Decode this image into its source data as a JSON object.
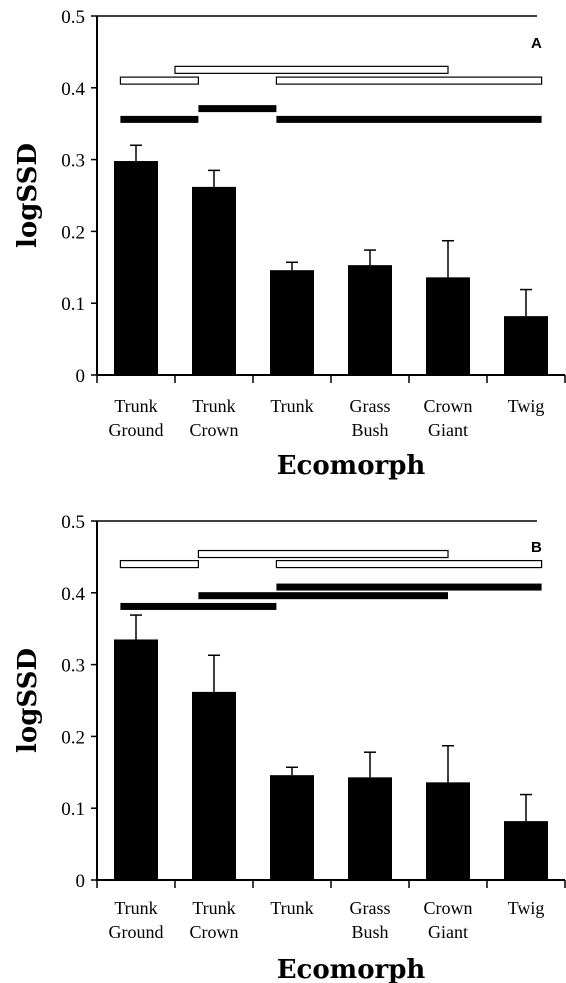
{
  "chart_data": [
    {
      "type": "bar",
      "panel_label": "A",
      "xlabel": "Ecomorph",
      "ylabel": "logSSD",
      "ylim": [
        0,
        0.5
      ],
      "yticks": [
        "0",
        "0.1",
        "0.2",
        "0.3",
        "0.4",
        "0.5"
      ],
      "categories": [
        [
          "Trunk",
          "Ground"
        ],
        [
          "Trunk",
          "Crown"
        ],
        [
          "Trunk"
        ],
        [
          "Grass",
          "Bush"
        ],
        [
          "Crown",
          "Giant"
        ],
        [
          "Twig"
        ]
      ],
      "values": [
        0.298,
        0.262,
        0.146,
        0.153,
        0.136,
        0.082
      ],
      "errors": [
        0.022,
        0.023,
        0.011,
        0.021,
        0.051,
        0.037
      ],
      "grouping_bars": [
        {
          "style": "open",
          "from": 1,
          "to": 4.5,
          "y": 0.425
        },
        {
          "style": "open",
          "from": 0.3,
          "to": 1.3,
          "y": 0.41
        },
        {
          "style": "open",
          "from": 2.3,
          "to": 5.7,
          "y": 0.41
        },
        {
          "style": "solid",
          "from": 1.3,
          "to": 2.3,
          "y": 0.371
        },
        {
          "style": "solid",
          "from": 0.3,
          "to": 1.3,
          "y": 0.356
        },
        {
          "style": "solid",
          "from": 2.3,
          "to": 5.7,
          "y": 0.356
        }
      ]
    },
    {
      "type": "bar",
      "panel_label": "B",
      "xlabel": "Ecomorph",
      "ylabel": "logSSD",
      "ylim": [
        0,
        0.5
      ],
      "yticks": [
        "0",
        "0.1",
        "0.2",
        "0.3",
        "0.4",
        "0.5"
      ],
      "categories": [
        [
          "Trunk",
          "Ground"
        ],
        [
          "Trunk",
          "Crown"
        ],
        [
          "Trunk"
        ],
        [
          "Grass",
          "Bush"
        ],
        [
          "Crown",
          "Giant"
        ],
        [
          "Twig"
        ]
      ],
      "values": [
        0.335,
        0.262,
        0.146,
        0.143,
        0.136,
        0.082
      ],
      "errors": [
        0.034,
        0.051,
        0.011,
        0.035,
        0.051,
        0.037
      ],
      "grouping_bars": [
        {
          "style": "open",
          "from": 1.3,
          "to": 4.5,
          "y": 0.454
        },
        {
          "style": "open",
          "from": 0.3,
          "to": 1.3,
          "y": 0.44
        },
        {
          "style": "open",
          "from": 2.3,
          "to": 5.7,
          "y": 0.44
        },
        {
          "style": "solid",
          "from": 2.3,
          "to": 5.7,
          "y": 0.408
        },
        {
          "style": "solid",
          "from": 1.3,
          "to": 4.5,
          "y": 0.396
        },
        {
          "style": "solid",
          "from": 0.3,
          "to": 2.3,
          "y": 0.381
        }
      ]
    }
  ]
}
